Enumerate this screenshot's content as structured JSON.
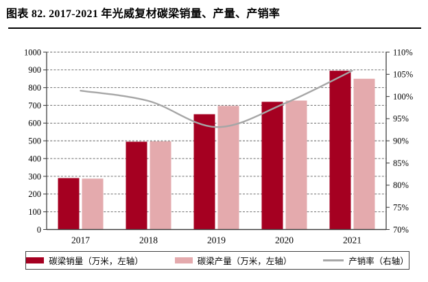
{
  "title": "图表 82. 2017-2021 年光威复材碳梁销量、产量、产销率",
  "colors": {
    "sales": "#A50021",
    "production": "#E4AAAD",
    "ratio_line": "#A6A6A6",
    "grid": "#595959",
    "axis": "#3f3f3f"
  },
  "legend": {
    "items": [
      {
        "label": "碳梁销量（万米，左轴）",
        "swatch": "bar",
        "color_key": "sales"
      },
      {
        "label": "碳梁产量（万米，左轴）",
        "swatch": "bar",
        "color_key": "production"
      },
      {
        "label": "产销率（右轴）",
        "swatch": "line",
        "color_key": "ratio_line"
      }
    ]
  },
  "chart_data": {
    "type": "bar",
    "subtype": "combo-bar-line",
    "title": "图表 82. 2017-2021 年光威复材碳梁销量、产量、产销率",
    "categories": [
      "2017",
      "2018",
      "2019",
      "2020",
      "2021"
    ],
    "series": [
      {
        "name": "碳梁销量（万米，左轴）",
        "key": "sales",
        "type": "bar",
        "axis": "left",
        "values": [
          290,
          495,
          650,
          720,
          895
        ]
      },
      {
        "name": "碳梁产量（万米，左轴）",
        "key": "production",
        "type": "bar",
        "axis": "left",
        "values": [
          287,
          497,
          697,
          727,
          850
        ]
      },
      {
        "name": "产销率（右轴）",
        "key": "ratio",
        "type": "line",
        "axis": "right",
        "unit": "%",
        "values": [
          101.3,
          99.0,
          93.1,
          98.4,
          105.8
        ]
      }
    ],
    "left_axis": {
      "min": 0,
      "max": 1000,
      "step": 100,
      "ticks": [
        "0",
        "100",
        "200",
        "300",
        "400",
        "500",
        "600",
        "700",
        "800",
        "900",
        "1000"
      ]
    },
    "right_axis": {
      "min": 70,
      "max": 110,
      "step": 5,
      "ticks": [
        "70%",
        "75%",
        "80%",
        "85%",
        "90%",
        "95%",
        "100%",
        "105%",
        "110%"
      ]
    },
    "grid": "horizontal-dashed",
    "legend_position": "bottom"
  }
}
